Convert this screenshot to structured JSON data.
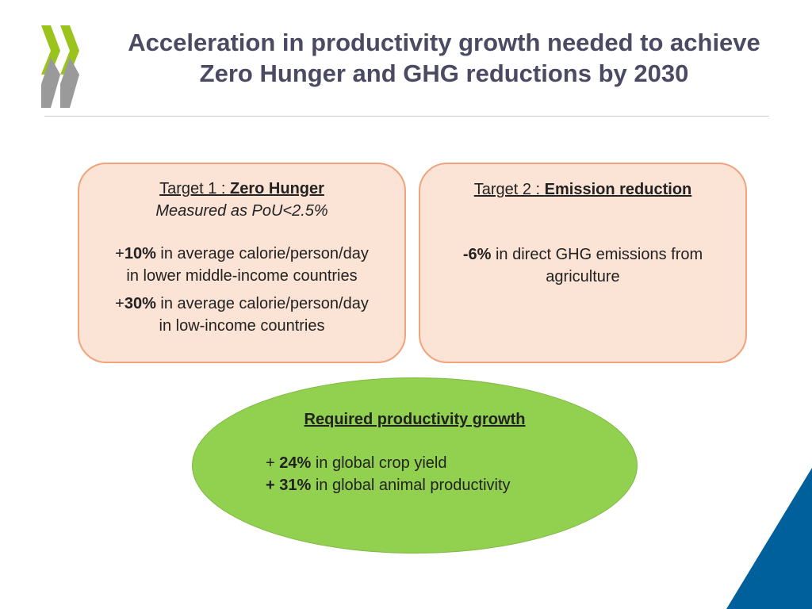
{
  "title": "Acceleration in productivity growth needed to achieve Zero Hunger and GHG reductions by 2030",
  "colors": {
    "title": "#4a4a63",
    "target_box_fill": "#fbe3d5",
    "target_box_border": "#f0a37e",
    "ellipse_fill": "#92d050",
    "logo_green": "#9ac31c",
    "logo_grey": "#9a9a9a",
    "corner_blue": "#00609c"
  },
  "icons": {
    "logo": "double-chevron-logo",
    "corner": "blue-triangle"
  },
  "target1": {
    "label_prefix": "Target 1 : ",
    "label_name": "Zero Hunger",
    "subtitle": "Measured as PoU<2.5%",
    "items": [
      {
        "prefix": "+",
        "value": "10%",
        "text": " in average calorie/person/day",
        "line2": "in lower middle-income countries"
      },
      {
        "prefix": "+",
        "value": "30%",
        "text": " in average calorie/person/day",
        "line2": "in low-income countries"
      }
    ]
  },
  "target2": {
    "label_prefix": "Target 2 : ",
    "label_name": "Emission reduction",
    "items": [
      {
        "value": "-6%",
        "text": " in direct GHG emissions from",
        "line2": "agriculture"
      }
    ]
  },
  "productivity": {
    "heading": "Required productivity growth",
    "items": [
      {
        "prefix": "+ ",
        "value": "24%",
        "text": " in global crop yield"
      },
      {
        "prefix": "+ ",
        "value": "31%",
        "text": " in global animal productivity"
      }
    ]
  }
}
